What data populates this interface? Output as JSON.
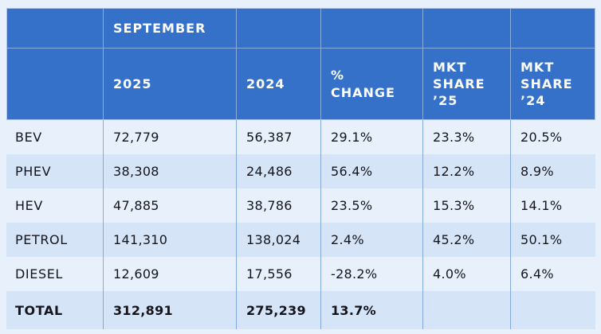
{
  "colors": {
    "page_bg": "#e8f1fb",
    "header_bg": "#3571c8",
    "row_light": "#e8f1fb",
    "row_dark": "#d6e4f7",
    "grid_line": "#84abde",
    "header_outline": "#a9c3ea",
    "text": "#15151c",
    "header_text": "#ffffff"
  },
  "chart_data": {
    "type": "table",
    "group_label": "SEPTEMBER",
    "columns": [
      "",
      "2025",
      "2024",
      "% CHANGE",
      "MKT SHARE '25",
      "MKT SHARE '24"
    ],
    "columns_display": [
      "",
      "2025",
      "2024",
      "%\nCHANGE",
      "MKT\nSHARE\n’25",
      "MKT\nSHARE\n’24"
    ],
    "rows": [
      [
        "BEV",
        "72,779",
        "56,387",
        "29.1%",
        "23.3%",
        "20.5%"
      ],
      [
        "PHEV",
        "38,308",
        "24,486",
        "56.4%",
        "12.2%",
        "8.9%"
      ],
      [
        "HEV",
        "47,885",
        "38,786",
        "23.5%",
        "15.3%",
        "14.1%"
      ],
      [
        "PETROL",
        "141,310",
        "138,024",
        "2.4%",
        "45.2%",
        "50.1%"
      ],
      [
        "DIESEL",
        "12,609",
        "17,556",
        "-28.2%",
        "4.0%",
        "6.4%"
      ],
      [
        "TOTAL",
        "312,891",
        "275,239",
        "13.7%",
        "",
        ""
      ]
    ]
  }
}
